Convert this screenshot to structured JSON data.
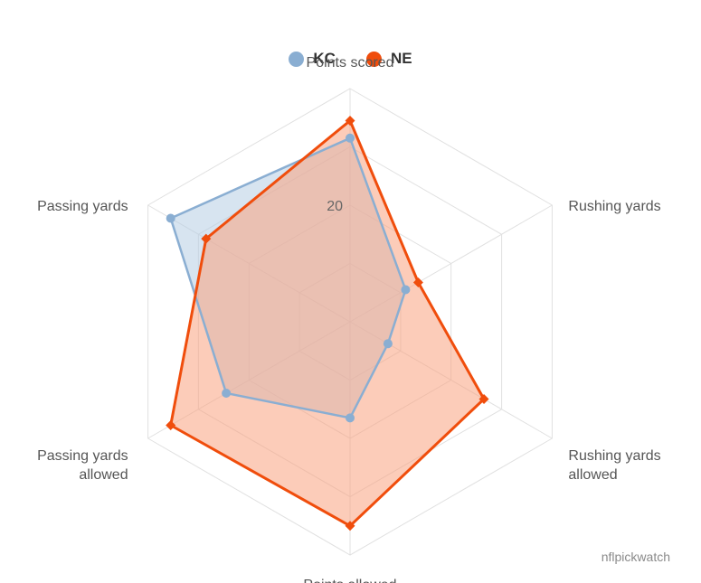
{
  "legend": {
    "items": [
      {
        "label": "KC",
        "color": "#8aaed2"
      },
      {
        "label": "NE",
        "color": "#f04d0c"
      }
    ]
  },
  "credit": "nflpickwatch",
  "chart_data": {
    "type": "radar",
    "axes": [
      "Points scored",
      "Rushing yards",
      "Rushing yards\nallowed",
      "Points allowed",
      "Passing yards\nallowed",
      "Passing yards"
    ],
    "radial_max": 40,
    "radial_ticks": [
      20
    ],
    "grid": true,
    "legend_position": "top-center",
    "series": [
      {
        "name": "KC",
        "values": [
          31.5,
          11.0,
          7.5,
          16.5,
          24.5,
          35.5
        ],
        "color": "#8aaed2",
        "fill": "#b7cde3",
        "marker": "circle"
      },
      {
        "name": "NE",
        "values": [
          34.5,
          13.5,
          26.5,
          35.0,
          35.5,
          28.5
        ],
        "color": "#f04d0c",
        "fill": "#f9a27f",
        "marker": "diamond"
      }
    ]
  }
}
